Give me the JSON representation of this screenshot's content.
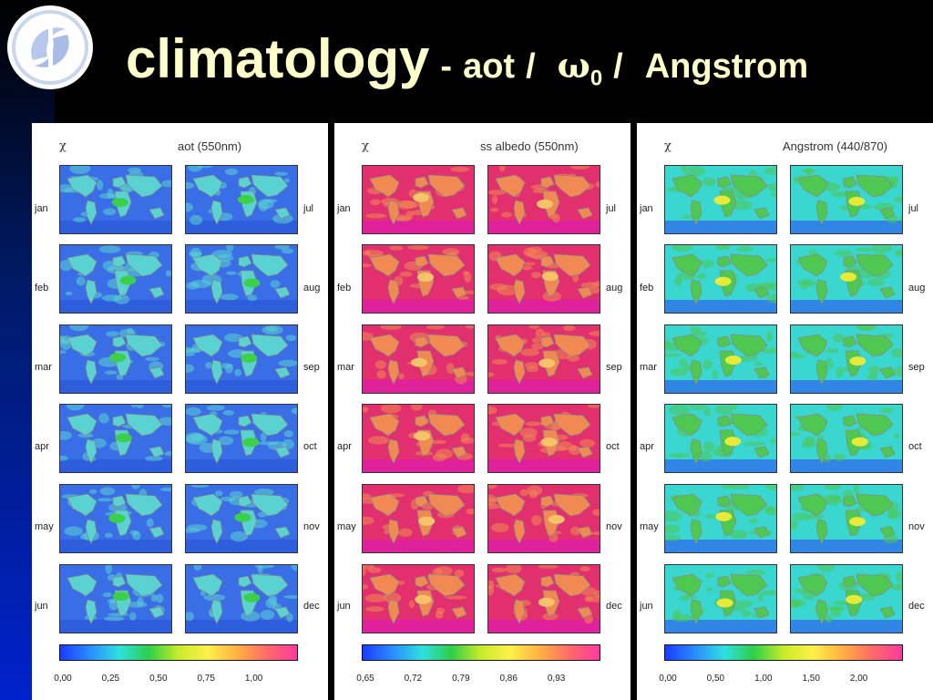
{
  "title": {
    "main": "climatology",
    "dash": "-",
    "aot": "aot",
    "slash": "/",
    "omega_symbol": "ω",
    "omega_sub": "0",
    "angstrom": "Angstrom"
  },
  "logo_icon": "institute-logo",
  "colors": {
    "title_text": "#ffffcc",
    "background": "#000000",
    "accent_blue": "#0022cc"
  },
  "panels": [
    {
      "chi": "χ",
      "variable": "aot (550nm)",
      "left_months": [
        "jan",
        "feb",
        "mar",
        "apr",
        "may",
        "jun"
      ],
      "right_months": [
        "jul",
        "aug",
        "sep",
        "oct",
        "nov",
        "dec"
      ],
      "colorbar_ticks": [
        "0,00",
        "0,25",
        "0,50",
        "0,75",
        "1,00"
      ],
      "tick_positions": [
        0.0,
        0.25,
        0.5,
        0.75,
        1.0
      ],
      "tick_range": [
        0.0,
        1.25
      ],
      "map_base": "#3a6ee6",
      "map_ocean2": "#2c5ad8",
      "map_land": "#5ad2d2",
      "map_hot": "#3ccf4a"
    },
    {
      "chi": "χ",
      "variable": "ss albedo (550nm)",
      "left_months": [
        "jan",
        "feb",
        "mar",
        "apr",
        "may",
        "jun"
      ],
      "right_months": [
        "jul",
        "aug",
        "sep",
        "oct",
        "nov",
        "dec"
      ],
      "colorbar_ticks": [
        "0,65",
        "0,72",
        "0,79",
        "0,86",
        "0,93"
      ],
      "tick_positions": [
        0.65,
        0.72,
        0.79,
        0.86,
        0.93
      ],
      "tick_range": [
        0.65,
        1.0
      ],
      "map_base": "#e2306e",
      "map_ocean2": "#e01ea8",
      "map_land": "#f08a52",
      "map_hot": "#f6c36a"
    },
    {
      "chi": "χ",
      "variable": "Angstrom (440/870)",
      "left_months": [
        "jan",
        "feb",
        "mar",
        "apr",
        "may",
        "jun"
      ],
      "right_months": [
        "jul",
        "aug",
        "sep",
        "oct",
        "nov",
        "dec"
      ],
      "colorbar_ticks": [
        "0,00",
        "0,50",
        "1,00",
        "1,50",
        "2,00"
      ],
      "tick_positions": [
        0.0,
        0.5,
        1.0,
        1.5,
        2.0
      ],
      "tick_range": [
        0.0,
        2.5
      ],
      "map_base": "#3ad6d0",
      "map_ocean2": "#3070e8",
      "map_land": "#4ec850",
      "map_hot": "#e6ea38"
    }
  ]
}
